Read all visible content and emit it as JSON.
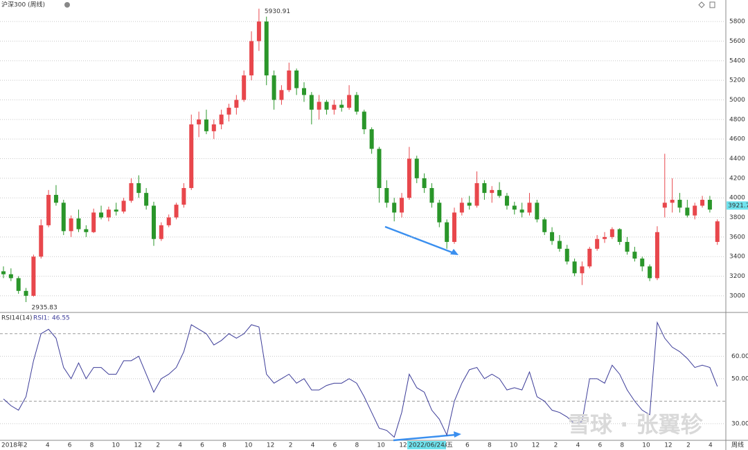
{
  "chart_data": [
    {
      "type": "candlestick",
      "title": "沪深300 (周线)",
      "ohlc": [
        [
          3250,
          3300,
          3180,
          3220
        ],
        [
          3220,
          3280,
          3150,
          3180
        ],
        [
          3180,
          3200,
          3020,
          3050
        ],
        [
          3050,
          3080,
          2935.83,
          3000
        ],
        [
          3000,
          3420,
          2990,
          3400
        ],
        [
          3400,
          3780,
          3380,
          3720
        ],
        [
          3720,
          4080,
          3700,
          4030
        ],
        [
          4030,
          4130,
          3920,
          3950
        ],
        [
          3950,
          3980,
          3620,
          3660
        ],
        [
          3660,
          3820,
          3600,
          3790
        ],
        [
          3790,
          3880,
          3650,
          3680
        ],
        [
          3680,
          3720,
          3600,
          3650
        ],
        [
          3650,
          3890,
          3640,
          3850
        ],
        [
          3850,
          3920,
          3780,
          3800
        ],
        [
          3800,
          3910,
          3760,
          3880
        ],
        [
          3880,
          3950,
          3820,
          3860
        ],
        [
          3860,
          4000,
          3840,
          3970
        ],
        [
          3970,
          4200,
          3950,
          4150
        ],
        [
          4150,
          4230,
          4000,
          4050
        ],
        [
          4050,
          4100,
          3880,
          3920
        ],
        [
          3920,
          3960,
          3510,
          3580
        ],
        [
          3580,
          3750,
          3560,
          3720
        ],
        [
          3720,
          3830,
          3700,
          3800
        ],
        [
          3800,
          3950,
          3780,
          3930
        ],
        [
          3930,
          4150,
          3900,
          4100
        ],
        [
          4100,
          4850,
          4080,
          4750
        ],
        [
          4750,
          4880,
          4620,
          4800
        ],
        [
          4800,
          4900,
          4650,
          4680
        ],
        [
          4680,
          4800,
          4600,
          4750
        ],
        [
          4750,
          4900,
          4700,
          4850
        ],
        [
          4850,
          4960,
          4780,
          4920
        ],
        [
          4920,
          5050,
          4850,
          5000
        ],
        [
          5000,
          5300,
          4980,
          5250
        ],
        [
          5250,
          5700,
          5200,
          5600
        ],
        [
          5600,
          5930.91,
          5500,
          5800
        ],
        [
          5800,
          5850,
          5150,
          5250
        ],
        [
          5250,
          5300,
          4900,
          5000
        ],
        [
          5000,
          5150,
          4950,
          5100
        ],
        [
          5100,
          5380,
          5080,
          5300
        ],
        [
          5300,
          5320,
          5050,
          5120
        ],
        [
          5120,
          5180,
          4980,
          5050
        ],
        [
          5050,
          5080,
          4750,
          4900
        ],
        [
          4900,
          5050,
          4800,
          4980
        ],
        [
          4980,
          5000,
          4850,
          4900
        ],
        [
          4900,
          5000,
          4850,
          4950
        ],
        [
          4950,
          5000,
          4880,
          4920
        ],
        [
          4920,
          5150,
          4900,
          5050
        ],
        [
          5050,
          5080,
          4850,
          4880
        ],
        [
          4880,
          4900,
          4650,
          4700
        ],
        [
          4700,
          4720,
          4450,
          4500
        ],
        [
          4500,
          4520,
          3950,
          4100
        ],
        [
          4100,
          4180,
          3900,
          3950
        ],
        [
          3950,
          4000,
          3760,
          3850
        ],
        [
          3850,
          4050,
          3800,
          4000
        ],
        [
          4000,
          4520,
          3980,
          4400
        ],
        [
          4400,
          4430,
          4150,
          4200
        ],
        [
          4200,
          4250,
          4050,
          4100
        ],
        [
          4100,
          4150,
          3900,
          3950
        ],
        [
          3950,
          3980,
          3700,
          3750
        ],
        [
          3750,
          3780,
          3480,
          3550
        ],
        [
          3550,
          3900,
          3530,
          3850
        ],
        [
          3850,
          4000,
          3820,
          3950
        ],
        [
          3950,
          4020,
          3880,
          3920
        ],
        [
          3920,
          4270,
          3900,
          4150
        ],
        [
          4150,
          4180,
          3980,
          4050
        ],
        [
          4050,
          4120,
          3950,
          4080
        ],
        [
          4080,
          4160,
          4000,
          4020
        ],
        [
          4020,
          4050,
          3880,
          3920
        ],
        [
          3920,
          3960,
          3830,
          3880
        ],
        [
          3880,
          3950,
          3800,
          3850
        ],
        [
          3850,
          4050,
          3820,
          3950
        ],
        [
          3950,
          3980,
          3750,
          3780
        ],
        [
          3780,
          3800,
          3620,
          3650
        ],
        [
          3650,
          3700,
          3520,
          3560
        ],
        [
          3560,
          3620,
          3450,
          3480
        ],
        [
          3480,
          3520,
          3320,
          3350
        ],
        [
          3350,
          3380,
          3200,
          3230
        ],
        [
          3230,
          3350,
          3110,
          3300
        ],
        [
          3300,
          3500,
          3280,
          3480
        ],
        [
          3480,
          3620,
          3460,
          3580
        ],
        [
          3580,
          3650,
          3540,
          3600
        ],
        [
          3600,
          3700,
          3580,
          3680
        ],
        [
          3680,
          3690,
          3520,
          3550
        ],
        [
          3550,
          3600,
          3420,
          3450
        ],
        [
          3450,
          3500,
          3350,
          3380
        ],
        [
          3380,
          3400,
          3250,
          3300
        ],
        [
          3300,
          3320,
          3150,
          3180
        ],
        [
          3180,
          3710,
          3160,
          3650
        ],
        [
          3900,
          4450,
          3800,
          3950
        ],
        [
          3950,
          4200,
          3850,
          3980
        ],
        [
          3980,
          4050,
          3850,
          3900
        ],
        [
          3900,
          3980,
          3800,
          3820
        ],
        [
          3820,
          3950,
          3780,
          3920
        ],
        [
          3920,
          4020,
          3900,
          3980
        ],
        [
          3980,
          4020,
          3850,
          3880
        ],
        [
          3550,
          3780,
          3520,
          3760
        ]
      ],
      "up_color": "#e8474c",
      "down_color": "#2a962a",
      "ylim": [
        2830,
        5935
      ],
      "yticks": [
        3000,
        3200,
        3400,
        3600,
        3800,
        4000,
        4200,
        4400,
        4600,
        4800,
        5000,
        5200,
        5400,
        5600,
        5800
      ],
      "grid": true,
      "last_price": 3921.7,
      "x_labels": [
        "2018年",
        "2",
        "4",
        "6",
        "8",
        "10",
        "12",
        "2",
        "4",
        "6",
        "8",
        "10",
        "12",
        "2",
        "4",
        "6",
        "8",
        "10",
        "12",
        "2",
        "4",
        "6",
        "8",
        "10",
        "12",
        "2",
        "4",
        "6",
        "8",
        "10",
        "12",
        "2",
        "4"
      ],
      "crosshair_label": "2022/06/24/五",
      "period_label": "周线"
    },
    {
      "type": "line",
      "title": "RSI14(14)",
      "series": [
        {
          "name": "RSI1:",
          "color": "#3b3b98",
          "values": [
            41,
            38,
            36,
            42,
            58,
            70,
            72,
            68,
            55,
            50,
            57,
            50,
            55,
            55,
            52,
            52,
            58,
            58,
            60,
            52,
            44,
            50,
            52,
            55,
            62,
            74,
            72,
            70,
            65,
            67,
            70,
            68,
            70,
            74,
            73,
            52,
            48,
            50,
            52,
            48,
            50,
            45,
            45,
            47,
            48,
            48,
            50,
            48,
            42,
            35,
            28,
            27,
            24,
            35,
            52,
            46,
            44,
            36,
            32,
            25,
            40,
            48,
            54,
            55,
            50,
            52,
            50,
            45,
            46,
            45,
            53,
            42,
            40,
            36,
            35,
            33,
            30,
            31,
            50,
            50,
            48,
            56,
            52,
            45,
            40,
            36,
            34,
            75,
            68,
            64,
            62,
            59,
            55,
            56,
            55,
            46.55
          ]
        }
      ],
      "ylim": [
        22.6,
        77
      ],
      "yticks": [
        {
          "value": 30,
          "label": "30.00"
        },
        {
          "value": 50,
          "label": "50.00"
        },
        {
          "value": 60,
          "label": "60.00"
        }
      ],
      "reference_lines": [
        40,
        70
      ],
      "grid": true
    }
  ],
  "watermark": "雪球 · 张翼轸"
}
